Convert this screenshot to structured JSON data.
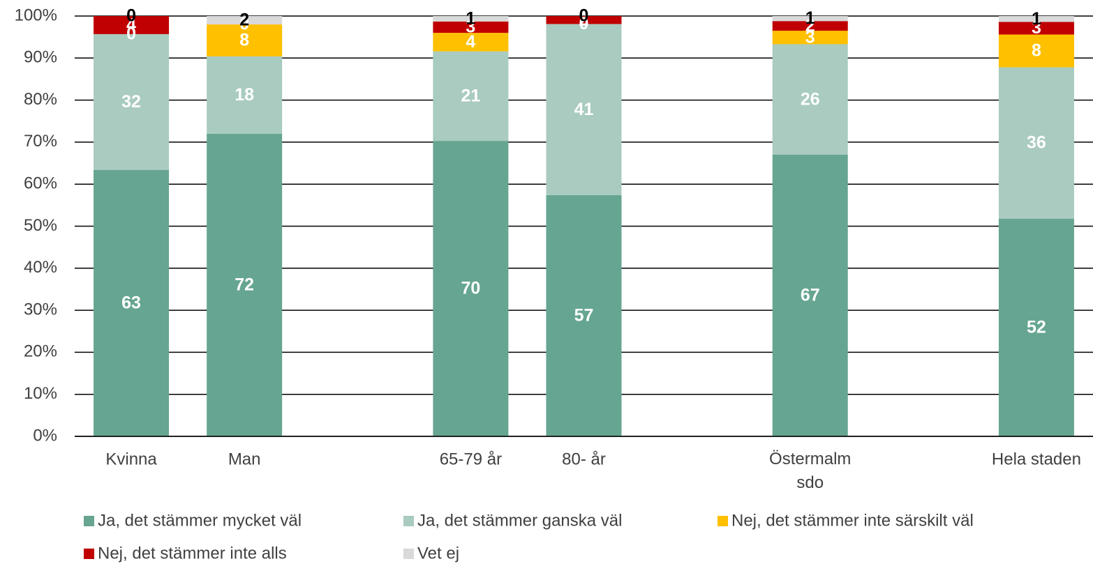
{
  "chart_data": {
    "type": "stacked_bar",
    "categories": [
      "Kvinna",
      "Man",
      null,
      "65-79 år",
      "80- år",
      null,
      "Östermalm sdo",
      null,
      "Hela staden"
    ],
    "series": [
      {
        "name": "Ja, det stämmer mycket väl",
        "color": "#66a591",
        "values": [
          63.4,
          72.0,
          null,
          70.3,
          57.4,
          null,
          67.0,
          null,
          51.8
        ],
        "value_labels": [
          "63",
          "72",
          null,
          "70",
          "57",
          null,
          "67",
          null,
          "52"
        ]
      },
      {
        "name": "Ja, det stämmer ganska väl",
        "color": "#a9cbc0",
        "values": [
          32.3,
          18.4,
          null,
          21.3,
          40.7,
          null,
          26.3,
          null,
          36.0
        ],
        "value_labels": [
          "32",
          "18",
          null,
          "21",
          "41",
          null,
          "26",
          null,
          "36"
        ]
      },
      {
        "name": "Nej, det stämmer inte särskilt väl",
        "color": "#ffc000",
        "values": [
          0,
          7.6,
          null,
          4.4,
          0,
          null,
          3.2,
          null,
          7.8
        ],
        "value_labels": [
          "0",
          "8",
          null,
          "4",
          "0",
          null,
          "3",
          null,
          "8"
        ]
      },
      {
        "name": "Nej, det stämmer inte alls",
        "color": "#c00000",
        "values": [
          4.3,
          0,
          null,
          2.7,
          1.9,
          null,
          2.3,
          null,
          3.0
        ],
        "value_labels": [
          "4",
          "0",
          null,
          "3",
          "2",
          null,
          "2",
          null,
          "3"
        ]
      },
      {
        "name": "Vet ej",
        "color": "#d9d9d9",
        "values": [
          0,
          2.0,
          null,
          1.3,
          0,
          null,
          1.2,
          null,
          1.4
        ],
        "value_labels": [
          "0",
          "2",
          null,
          "1",
          "0",
          null,
          "1",
          null,
          "1"
        ]
      }
    ],
    "ylim": [
      0,
      100
    ],
    "yticks": [
      {
        "value": 0,
        "label": "0%"
      },
      {
        "value": 10,
        "label": "10%"
      },
      {
        "value": 20,
        "label": "20%"
      },
      {
        "value": 30,
        "label": "30%"
      },
      {
        "value": 40,
        "label": "40%"
      },
      {
        "value": 50,
        "label": "50%"
      },
      {
        "value": 60,
        "label": "60%"
      },
      {
        "value": 70,
        "label": "70%"
      },
      {
        "value": 80,
        "label": "80%"
      },
      {
        "value": 90,
        "label": "90%"
      },
      {
        "value": 100,
        "label": "100%"
      }
    ],
    "grid": true,
    "legend": "bottom"
  }
}
